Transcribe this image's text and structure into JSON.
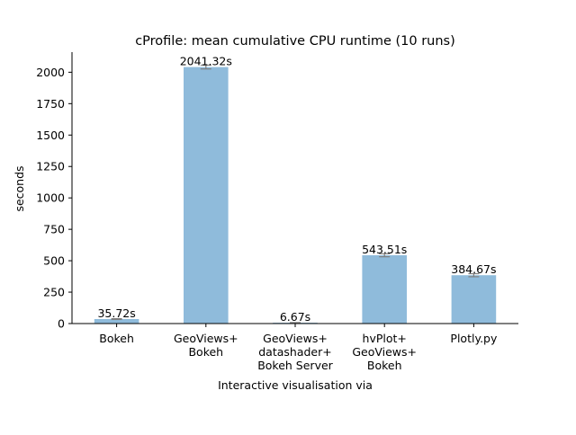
{
  "chart_data": {
    "type": "bar",
    "title": "cProfile: mean cumulative CPU runtime (10 runs)",
    "xlabel": "Interactive visualisation via",
    "ylabel": "seconds",
    "categories": [
      [
        "Bokeh"
      ],
      [
        "GeoViews+",
        "Bokeh"
      ],
      [
        "GeoViews+",
        "datashader+",
        "Bokeh Server"
      ],
      [
        "hvPlot+",
        "GeoViews+",
        "Bokeh"
      ],
      [
        "Plotly.py"
      ]
    ],
    "values": [
      35.72,
      2041.32,
      6.67,
      543.51,
      384.67
    ],
    "error": [
      3,
      15,
      1,
      12,
      12
    ],
    "value_labels": [
      "35.72s",
      "2041.32s",
      "6.67s",
      "543.51s",
      "384.67s"
    ],
    "ylim": [
      0,
      2160
    ],
    "yticks": [
      0,
      250,
      500,
      750,
      1000,
      1250,
      1500,
      1750,
      2000
    ],
    "grid": false,
    "bar_color": "#8fbbdb",
    "error_color": "#7f7f7f",
    "axis_color": "#000000"
  }
}
